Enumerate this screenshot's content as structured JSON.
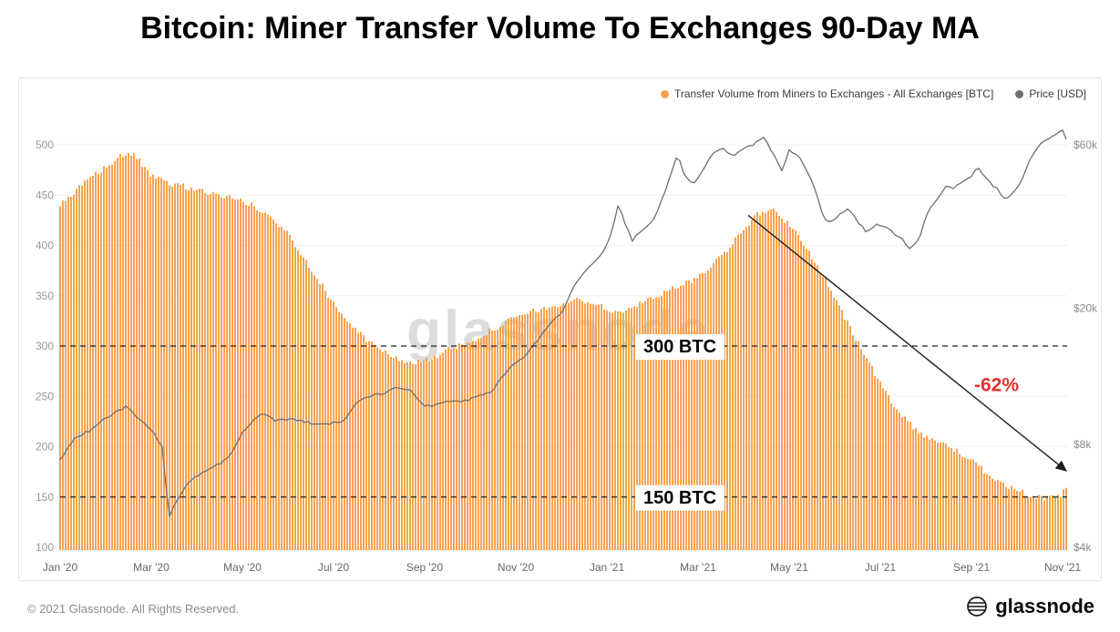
{
  "title": "Bitcoin: Miner Transfer Volume To Exchanges 90-Day MA",
  "watermark": "glassnode",
  "legend": [
    {
      "label": "Transfer Volume from Miners to Exchanges - All Exchanges [BTC]",
      "color": "#F7A14E"
    },
    {
      "label": "Price [USD]",
      "color": "#6F6F6F"
    }
  ],
  "annotations": {
    "ref_lines": [
      {
        "value": 300,
        "label": "300 BTC",
        "label_t": 13.6
      },
      {
        "value": 150,
        "label": "150 BTC",
        "label_t": 13.6
      }
    ],
    "arrow": {
      "from": [
        15.1,
        430
      ],
      "to": [
        22.08,
        176
      ],
      "color": "#1f1f1f"
    },
    "pct": {
      "label": "-62%",
      "t": 20.55,
      "v": 255,
      "color": "#e63030"
    }
  },
  "footer": {
    "copyright": "© 2021 Glassnode. All Rights Reserved.",
    "brand": "glassnode"
  },
  "chart_data": {
    "type": "combo",
    "t_unit": "months since Jan 2020",
    "t_max": 22.1,
    "x_ticks": [
      "Jan '20",
      "Mar '20",
      "May '20",
      "Jul '20",
      "Sep '20",
      "Nov '20",
      "Jan '21",
      "Mar '21",
      "May '21",
      "Jul '21",
      "Sep '21",
      "Nov '21"
    ],
    "left_axis": {
      "label": "[BTC]",
      "scale": "linear",
      "range": [
        100,
        500
      ],
      "ticks": [
        100,
        150,
        200,
        250,
        300,
        350,
        400,
        450,
        500
      ]
    },
    "right_axis": {
      "label": "[USD]",
      "scale": "log",
      "range": [
        4000,
        60000
      ],
      "ticks": [
        "$4k",
        "$8k",
        "$20k",
        "$60k"
      ],
      "tick_values": [
        4000,
        8000,
        20000,
        60000
      ]
    },
    "series": [
      {
        "name": "Transfer Volume from Miners to Exchanges - All Exchanges [BTC]",
        "type": "bar",
        "color": "#F7A14E",
        "points": [
          [
            0,
            439
          ],
          [
            0.3,
            452
          ],
          [
            0.6,
            464
          ],
          [
            0.9,
            475
          ],
          [
            1.2,
            484
          ],
          [
            1.5,
            493
          ],
          [
            1.7,
            486
          ],
          [
            1.9,
            473
          ],
          [
            2.1,
            466
          ],
          [
            2.4,
            462
          ],
          [
            2.7,
            459
          ],
          [
            3.0,
            455
          ],
          [
            3.3,
            452
          ],
          [
            3.6,
            449
          ],
          [
            3.9,
            446
          ],
          [
            4.2,
            440
          ],
          [
            4.6,
            428
          ],
          [
            5.0,
            412
          ],
          [
            5.5,
            378
          ],
          [
            6.0,
            342
          ],
          [
            6.5,
            315
          ],
          [
            7.0,
            296
          ],
          [
            7.5,
            286
          ],
          [
            7.8,
            283
          ],
          [
            8.2,
            289
          ],
          [
            8.6,
            297
          ],
          [
            9.0,
            305
          ],
          [
            9.4,
            314
          ],
          [
            9.8,
            324
          ],
          [
            10.2,
            332
          ],
          [
            10.6,
            337
          ],
          [
            11.0,
            341
          ],
          [
            11.4,
            346
          ],
          [
            11.7,
            343
          ],
          [
            12.0,
            336
          ],
          [
            12.3,
            334
          ],
          [
            12.6,
            338
          ],
          [
            13.0,
            349
          ],
          [
            13.4,
            356
          ],
          [
            13.8,
            363
          ],
          [
            14.2,
            376
          ],
          [
            14.6,
            394
          ],
          [
            15.0,
            417
          ],
          [
            15.3,
            430
          ],
          [
            15.6,
            437
          ],
          [
            16.0,
            421
          ],
          [
            16.4,
            397
          ],
          [
            16.8,
            365
          ],
          [
            17.2,
            330
          ],
          [
            17.6,
            296
          ],
          [
            18.0,
            262
          ],
          [
            18.4,
            235
          ],
          [
            18.8,
            216
          ],
          [
            19.2,
            206
          ],
          [
            19.6,
            198
          ],
          [
            20.0,
            186
          ],
          [
            20.4,
            172
          ],
          [
            20.8,
            161
          ],
          [
            21.2,
            153
          ],
          [
            21.6,
            148
          ],
          [
            21.9,
            150
          ],
          [
            22.1,
            158
          ]
        ]
      },
      {
        "name": "Price [USD]",
        "type": "line",
        "color": "#6F6F6F",
        "points": [
          [
            0,
            7200
          ],
          [
            0.3,
            8300
          ],
          [
            0.6,
            8700
          ],
          [
            0.9,
            9300
          ],
          [
            1.2,
            9900
          ],
          [
            1.45,
            10300
          ],
          [
            1.7,
            9600
          ],
          [
            2.0,
            8800
          ],
          [
            2.25,
            7900
          ],
          [
            2.38,
            4900
          ],
          [
            2.55,
            5400
          ],
          [
            2.8,
            6200
          ],
          [
            3.1,
            6600
          ],
          [
            3.4,
            6900
          ],
          [
            3.7,
            7300
          ],
          [
            4.0,
            8700
          ],
          [
            4.3,
            9500
          ],
          [
            4.5,
            9900
          ],
          [
            4.7,
            9300
          ],
          [
            5.0,
            9500
          ],
          [
            5.3,
            9400
          ],
          [
            5.6,
            9100
          ],
          [
            5.9,
            9200
          ],
          [
            6.2,
            9300
          ],
          [
            6.5,
            10600
          ],
          [
            6.8,
            11100
          ],
          [
            7.1,
            11300
          ],
          [
            7.4,
            11800
          ],
          [
            7.7,
            11500
          ],
          [
            8.0,
            10300
          ],
          [
            8.3,
            10500
          ],
          [
            8.6,
            10800
          ],
          [
            8.9,
            10700
          ],
          [
            9.2,
            11100
          ],
          [
            9.5,
            11500
          ],
          [
            9.8,
            13100
          ],
          [
            10.1,
            14100
          ],
          [
            10.4,
            15600
          ],
          [
            10.7,
            17700
          ],
          [
            11.0,
            19400
          ],
          [
            11.3,
            23300
          ],
          [
            11.6,
            26500
          ],
          [
            11.9,
            29000
          ],
          [
            12.1,
            33000
          ],
          [
            12.25,
            40000
          ],
          [
            12.4,
            35500
          ],
          [
            12.55,
            31500
          ],
          [
            12.7,
            33000
          ],
          [
            12.9,
            34500
          ],
          [
            13.1,
            38000
          ],
          [
            13.35,
            47000
          ],
          [
            13.55,
            57000
          ],
          [
            13.7,
            49000
          ],
          [
            13.9,
            46000
          ],
          [
            14.1,
            50500
          ],
          [
            14.35,
            57500
          ],
          [
            14.55,
            59000
          ],
          [
            14.75,
            55500
          ],
          [
            15.0,
            58800
          ],
          [
            15.2,
            59800
          ],
          [
            15.45,
            63200
          ],
          [
            15.65,
            56500
          ],
          [
            15.85,
            50000
          ],
          [
            16.0,
            57500
          ],
          [
            16.2,
            55500
          ],
          [
            16.45,
            49000
          ],
          [
            16.6,
            43000
          ],
          [
            16.75,
            37000
          ],
          [
            16.9,
            35500
          ],
          [
            17.1,
            37500
          ],
          [
            17.3,
            39500
          ],
          [
            17.5,
            35500
          ],
          [
            17.7,
            33500
          ],
          [
            17.9,
            35000
          ],
          [
            18.1,
            34500
          ],
          [
            18.3,
            33000
          ],
          [
            18.5,
            31500
          ],
          [
            18.65,
            29800
          ],
          [
            18.85,
            32000
          ],
          [
            19.05,
            38500
          ],
          [
            19.25,
            42000
          ],
          [
            19.45,
            45500
          ],
          [
            19.6,
            44500
          ],
          [
            19.8,
            47000
          ],
          [
            20.0,
            48800
          ],
          [
            20.15,
            51800
          ],
          [
            20.35,
            47000
          ],
          [
            20.55,
            44900
          ],
          [
            20.7,
            41500
          ],
          [
            20.9,
            43000
          ],
          [
            21.1,
            47500
          ],
          [
            21.3,
            54500
          ],
          [
            21.5,
            60500
          ],
          [
            21.7,
            62500
          ],
          [
            21.85,
            64500
          ],
          [
            22.0,
            66800
          ],
          [
            22.05,
            64000
          ],
          [
            22.1,
            60300
          ]
        ]
      }
    ]
  }
}
